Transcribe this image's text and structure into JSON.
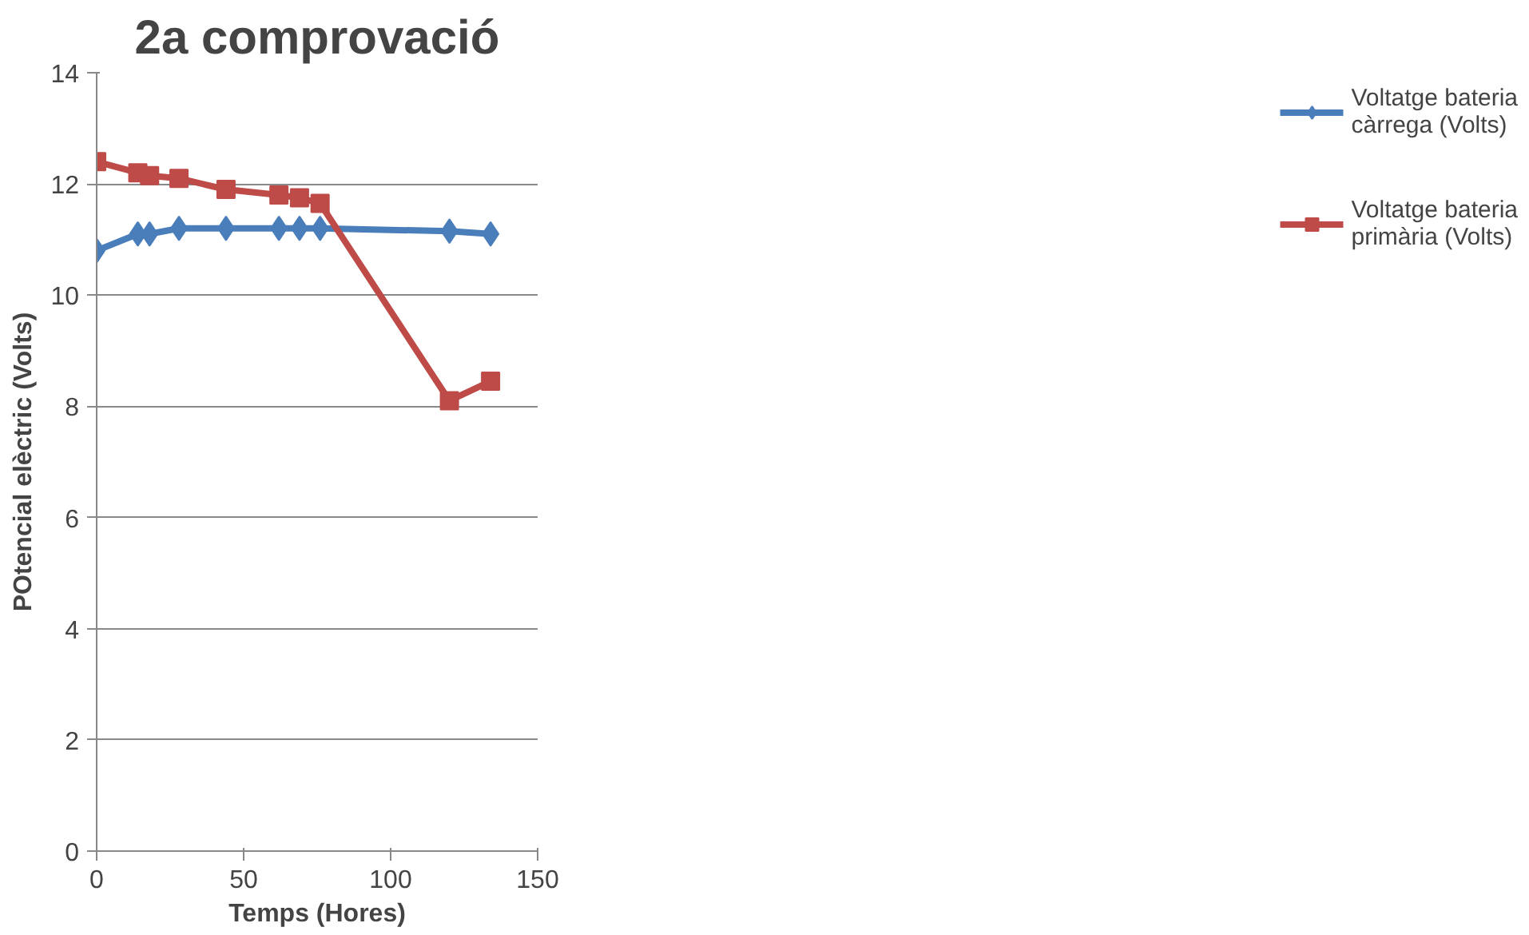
{
  "chart_data": {
    "type": "line",
    "title": "2a comprovació",
    "xlabel": "Temps (Hores)",
    "ylabel": "POtencial elèctric (Volts)",
    "xlim": [
      0,
      150
    ],
    "xticks": [
      0,
      50,
      100,
      150
    ],
    "ylim": [
      0,
      14
    ],
    "yticks": [
      0,
      2,
      4,
      6,
      8,
      10,
      12,
      14
    ],
    "grid": "y",
    "legend": "right",
    "x": [
      0,
      14,
      18,
      28,
      44,
      62,
      69,
      76,
      120,
      134
    ],
    "series": [
      {
        "name": "Voltatge bateria càrrega (Volts)",
        "color": "#4a7ebb",
        "marker": "diamond",
        "values": [
          10.8,
          11.1,
          11.1,
          11.2,
          11.2,
          11.2,
          11.2,
          11.2,
          11.15,
          11.1
        ]
      },
      {
        "name": "Voltatge bateria primària (Volts)",
        "color": "#be4b48",
        "marker": "square",
        "values": [
          12.4,
          12.2,
          12.15,
          12.1,
          11.9,
          11.8,
          11.75,
          11.65,
          8.1,
          8.45
        ]
      }
    ]
  }
}
